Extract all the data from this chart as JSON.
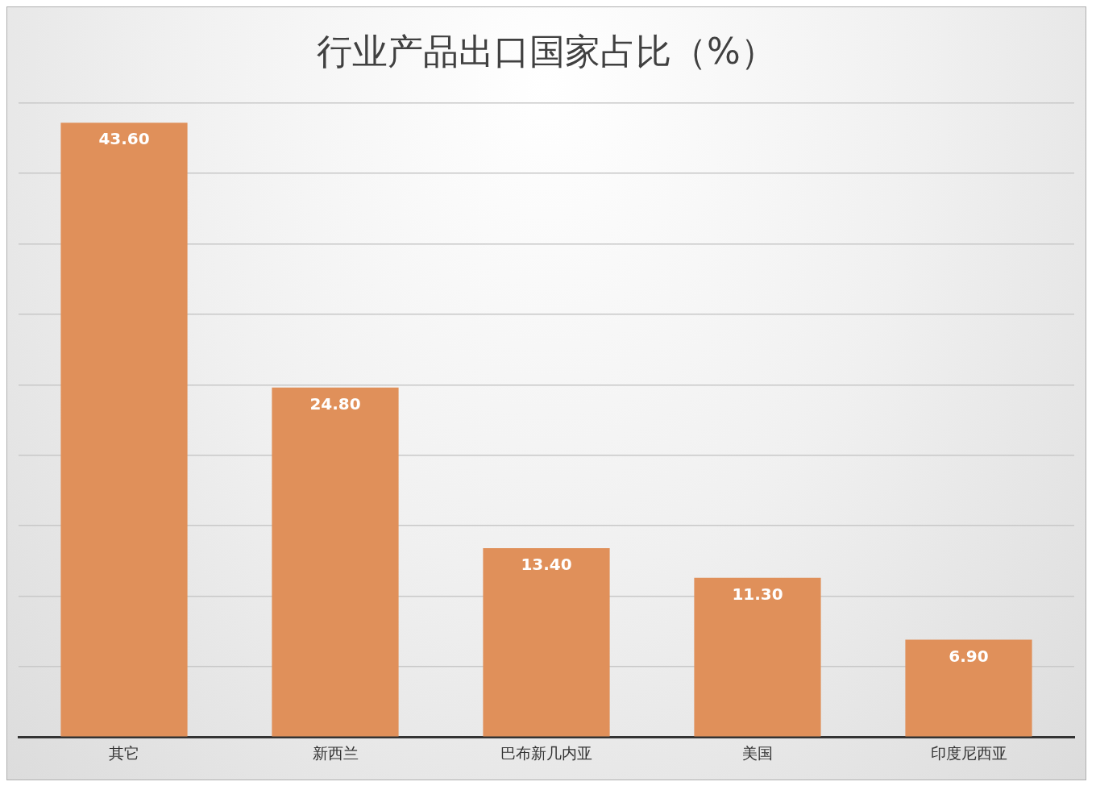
{
  "chart_data": {
    "type": "bar",
    "title": "行业产品出口国家占比（%）",
    "categories": [
      "其它",
      "新西兰",
      "巴布新几内亚",
      "美国",
      "印度尼西亚"
    ],
    "values": [
      43.6,
      24.8,
      13.4,
      11.3,
      6.9
    ],
    "value_labels": [
      "43.60",
      "24.80",
      "13.40",
      "11.30",
      "6.90"
    ],
    "color": "#e0905a",
    "grid": "y",
    "tick_labels": "x",
    "legend": false
  }
}
